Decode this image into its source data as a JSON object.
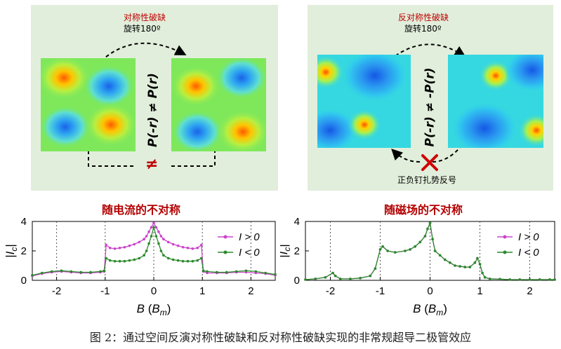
{
  "left_panel": {
    "top_label": "对称性破缺",
    "rotation_label": "旋转180º",
    "equation": "P(-r) ≠ P(r)",
    "neq_symbol": "≠"
  },
  "right_panel": {
    "top_label": "反对称性破缺",
    "rotation_label": "旋转180º",
    "equation": "P(-r) ≠ -P(r)",
    "bottom_label": "正负钉扎势反号"
  },
  "chart_titles": [
    "随电流的不对称",
    "随磁场的不对称"
  ],
  "colors": {
    "panel_bg": "#e1eedb",
    "title_red": "#b30000",
    "cross_red": "#d00000",
    "positive": "#cc44cc",
    "negative": "#2a8a2a"
  },
  "chart_data": [
    {
      "type": "line",
      "title": "随电流的不对称",
      "xlabel": "B (B_m)",
      "ylabel": "|I_c|",
      "xlim": [
        -2.5,
        2.5
      ],
      "ylim": [
        0,
        4
      ],
      "xticks": [
        "-2",
        "-1",
        "0",
        "1",
        "2"
      ],
      "yticks": [
        "0",
        "2",
        "4"
      ],
      "legend": "top-right",
      "series": [
        {
          "name": "I > 0",
          "x": [
            -2.5,
            -2.3,
            -2.1,
            -1.9,
            -1.7,
            -1.5,
            -1.3,
            -1.1,
            -1.02,
            -0.98,
            -0.9,
            -0.8,
            -0.7,
            -0.6,
            -0.5,
            -0.4,
            -0.3,
            -0.2,
            -0.15,
            -0.1,
            -0.05,
            0,
            0.05,
            0.1,
            0.15,
            0.2,
            0.3,
            0.4,
            0.5,
            0.6,
            0.7,
            0.8,
            0.9,
            0.98,
            1.02,
            1.1,
            1.3,
            1.5,
            1.7,
            1.9,
            2.1,
            2.3,
            2.5
          ],
          "y": [
            0.3,
            0.45,
            0.55,
            0.6,
            0.55,
            0.5,
            0.5,
            0.55,
            0.6,
            2.4,
            2.2,
            2.15,
            2.2,
            2.25,
            2.35,
            2.45,
            2.6,
            2.8,
            3.0,
            3.3,
            3.6,
            3.9,
            3.6,
            3.3,
            3.0,
            2.8,
            2.6,
            2.45,
            2.35,
            2.25,
            2.2,
            2.15,
            2.2,
            2.4,
            0.6,
            0.5,
            0.5,
            0.5,
            0.55,
            0.55,
            0.5,
            0.45,
            0.35
          ]
        },
        {
          "name": "I < 0",
          "x": [
            -2.5,
            -2.3,
            -2.1,
            -1.9,
            -1.7,
            -1.5,
            -1.3,
            -1.1,
            -1.02,
            -0.98,
            -0.9,
            -0.8,
            -0.7,
            -0.6,
            -0.5,
            -0.4,
            -0.3,
            -0.2,
            -0.15,
            -0.1,
            -0.05,
            0,
            0.05,
            0.1,
            0.15,
            0.2,
            0.3,
            0.4,
            0.5,
            0.6,
            0.7,
            0.8,
            0.9,
            0.98,
            1.02,
            1.1,
            1.3,
            1.5,
            1.7,
            1.9,
            2.1,
            2.3,
            2.5
          ],
          "y": [
            0.35,
            0.5,
            0.6,
            0.65,
            0.6,
            0.55,
            0.55,
            0.6,
            0.65,
            1.5,
            1.35,
            1.3,
            1.3,
            1.3,
            1.35,
            1.4,
            1.5,
            1.7,
            2.0,
            2.5,
            3.0,
            3.6,
            3.0,
            2.5,
            2.0,
            1.7,
            1.5,
            1.4,
            1.35,
            1.3,
            1.3,
            1.3,
            1.35,
            1.5,
            0.65,
            0.6,
            0.55,
            0.55,
            0.6,
            0.65,
            0.6,
            0.5,
            0.4
          ]
        }
      ]
    },
    {
      "type": "line",
      "title": "随磁场的不对称",
      "xlabel": "B (B_m)",
      "ylabel": "|I_c|",
      "xlim": [
        -2.5,
        2.5
      ],
      "ylim": [
        0,
        4
      ],
      "xticks": [
        "-2",
        "-1",
        "0",
        "1",
        "2"
      ],
      "yticks": [
        "0",
        "2",
        "4"
      ],
      "legend": "top-right",
      "series": [
        {
          "name": "I > 0",
          "x": [
            -2.5,
            -2.3,
            -2.1,
            -1.95,
            -1.9,
            -1.8,
            -1.6,
            -1.4,
            -1.2,
            -1.1,
            -1.0,
            -0.95,
            -0.85,
            -0.7,
            -0.5,
            -0.4,
            -0.3,
            -0.2,
            -0.1,
            -0.05,
            0,
            0.05,
            0.1,
            0.2,
            0.3,
            0.4,
            0.5,
            0.6,
            0.7,
            0.8,
            0.9,
            0.95,
            1.0,
            1.05,
            1.1,
            1.2,
            1.4,
            1.6,
            1.8,
            2.0,
            2.2,
            2.4,
            2.5
          ],
          "y": [
            0.05,
            0.1,
            0.2,
            0.5,
            0.3,
            0.1,
            0.1,
            0.15,
            0.3,
            0.8,
            2.1,
            2.3,
            2.0,
            1.9,
            2.0,
            2.1,
            2.3,
            2.6,
            3.0,
            3.5,
            3.9,
            2.8,
            2.0,
            1.7,
            1.4,
            1.2,
            1.0,
            0.95,
            0.9,
            0.9,
            1.2,
            1.5,
            1.1,
            0.5,
            0.2,
            0.1,
            0.08,
            0.05,
            0.05,
            0.05,
            0.05,
            0.05,
            0.05
          ]
        },
        {
          "name": "I < 0",
          "x": [
            -2.5,
            -2.3,
            -2.1,
            -1.95,
            -1.9,
            -1.8,
            -1.6,
            -1.4,
            -1.2,
            -1.1,
            -1.0,
            -0.95,
            -0.85,
            -0.7,
            -0.5,
            -0.4,
            -0.3,
            -0.2,
            -0.1,
            -0.05,
            0,
            0.05,
            0.1,
            0.2,
            0.3,
            0.4,
            0.5,
            0.6,
            0.7,
            0.8,
            0.9,
            0.95,
            1.0,
            1.05,
            1.1,
            1.2,
            1.4,
            1.6,
            1.8,
            2.0,
            2.2,
            2.4,
            2.5
          ],
          "y": [
            0.05,
            0.1,
            0.2,
            0.5,
            0.3,
            0.1,
            0.1,
            0.15,
            0.3,
            0.8,
            2.1,
            2.3,
            2.0,
            1.9,
            2.0,
            2.1,
            2.3,
            2.6,
            3.0,
            3.5,
            3.9,
            2.8,
            2.0,
            1.7,
            1.4,
            1.2,
            1.0,
            0.95,
            0.9,
            0.9,
            1.2,
            1.5,
            1.1,
            0.5,
            0.2,
            0.1,
            0.08,
            0.05,
            0.05,
            0.05,
            0.05,
            0.05,
            0.05
          ]
        }
      ]
    }
  ],
  "caption": "图 2：通过空间反演对称性破缺和反对称性破缺实现的非常规超导二极管效应"
}
